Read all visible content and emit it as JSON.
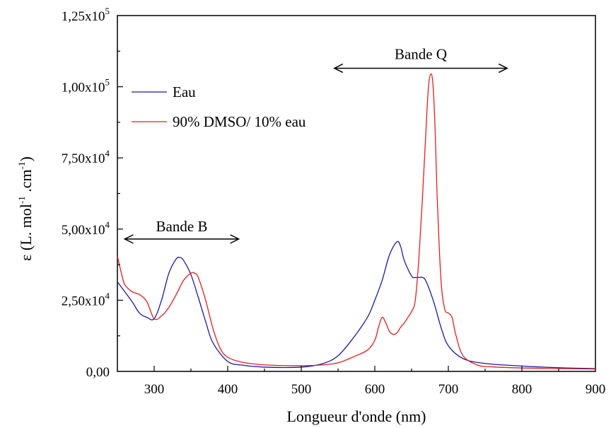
{
  "chart_data": {
    "type": "line",
    "xlabel": "Longueur d'onde (nm)",
    "ylabel_parts": {
      "eps": "ε (L. mol",
      "sup1": "-1",
      "mid": " .cm",
      "sup2": "-1",
      "end": ")"
    },
    "xlim": [
      250,
      900
    ],
    "ylim": [
      0,
      125000
    ],
    "x_ticks": [
      {
        "value": 300,
        "label": "300"
      },
      {
        "value": 400,
        "label": "400"
      },
      {
        "value": 500,
        "label": "500"
      },
      {
        "value": 600,
        "label": "600"
      },
      {
        "value": 700,
        "label": "700"
      },
      {
        "value": 800,
        "label": "800"
      },
      {
        "value": 900,
        "label": "900"
      }
    ],
    "y_ticks": [
      {
        "value": 0,
        "base": "0,00",
        "exp": ""
      },
      {
        "value": 25000,
        "base": "2,50x10",
        "exp": "4"
      },
      {
        "value": 50000,
        "base": "5,00x10",
        "exp": "4"
      },
      {
        "value": 75000,
        "base": "7,50x10",
        "exp": "4"
      },
      {
        "value": 100000,
        "base": "1,00x10",
        "exp": "5"
      },
      {
        "value": 125000,
        "base": "1,25x10",
        "exp": "5"
      }
    ],
    "legend_position": "top-left",
    "series": [
      {
        "name": "Eau",
        "color": "#1a1aa6",
        "x": [
          250,
          260,
          270,
          280,
          290,
          300,
          310,
          320,
          330,
          335,
          340,
          350,
          360,
          370,
          380,
          400,
          420,
          450,
          500,
          530,
          550,
          570,
          590,
          600,
          610,
          620,
          630,
          635,
          640,
          650,
          655,
          660,
          665,
          670,
          680,
          690,
          700,
          720,
          750,
          800,
          850,
          900
        ],
        "y": [
          31500,
          28000,
          24500,
          20500,
          19000,
          18500,
          25000,
          34500,
          39500,
          40000,
          39000,
          34000,
          26000,
          17500,
          10000,
          3500,
          2200,
          1500,
          1500,
          2800,
          5500,
          11500,
          19000,
          25000,
          32000,
          41000,
          45500,
          44000,
          39000,
          33500,
          33000,
          33000,
          33000,
          31500,
          24500,
          15500,
          9000,
          4500,
          2800,
          1900,
          1300,
          1000
        ]
      },
      {
        "name": "90% DMSO/ 10% eau",
        "color": "#e81c1c",
        "x": [
          250,
          255,
          260,
          270,
          280,
          290,
          300,
          310,
          320,
          330,
          340,
          350,
          355,
          360,
          370,
          380,
          390,
          400,
          420,
          450,
          500,
          530,
          550,
          570,
          590,
          600,
          605,
          610,
          615,
          620,
          625,
          630,
          635,
          640,
          645,
          650,
          655,
          660,
          665,
          670,
          673,
          676,
          679,
          682,
          685,
          690,
          695,
          700,
          705,
          710,
          720,
          740,
          760,
          800,
          850,
          900
        ],
        "y": [
          40500,
          35000,
          30500,
          28000,
          27000,
          24500,
          18500,
          19500,
          22500,
          27000,
          32000,
          34500,
          34500,
          33000,
          25000,
          15000,
          8000,
          5000,
          3200,
          2300,
          2000,
          2300,
          3000,
          5000,
          7500,
          11000,
          15500,
          19000,
          17000,
          14000,
          13000,
          13500,
          15500,
          17000,
          19000,
          21000,
          25000,
          40000,
          62000,
          87000,
          100000,
          104500,
          101000,
          85000,
          60000,
          32000,
          22000,
          20500,
          19000,
          13000,
          5500,
          2200,
          1600,
          1200,
          1000,
          800
        ]
      }
    ],
    "annotations": [
      {
        "label": "Bande B",
        "x_start": 260,
        "x_end": 415,
        "y": 46500,
        "label_y": 51000
      },
      {
        "label": "Bande Q",
        "x_start": 545,
        "x_end": 780,
        "y": 106500,
        "label_y": 111500
      }
    ]
  }
}
